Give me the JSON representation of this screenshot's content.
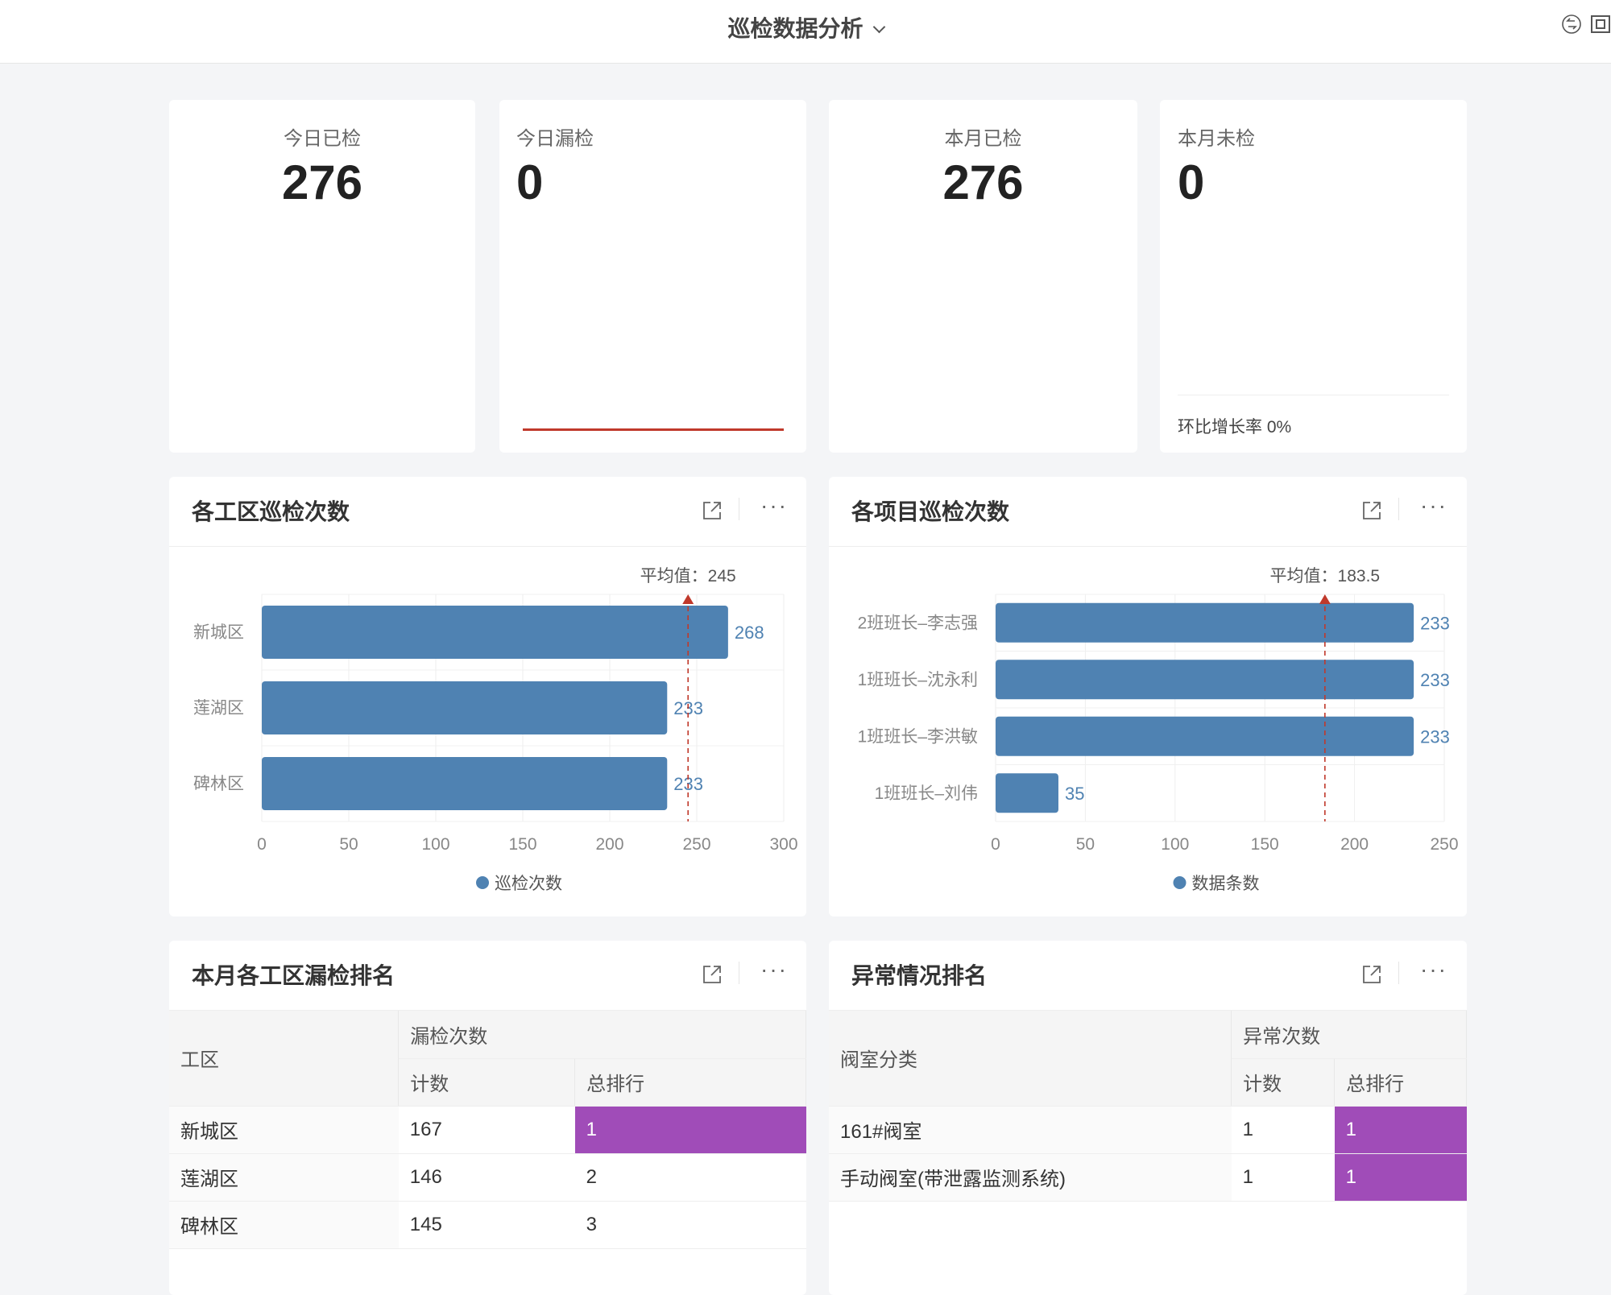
{
  "header": {
    "title": "巡检数据分析",
    "icons": [
      "sync-icon",
      "fullscreen-icon"
    ]
  },
  "kpis": [
    {
      "label": "今日已检",
      "value": "276"
    },
    {
      "label": "今日漏检",
      "value": "0"
    },
    {
      "label": "本月已检",
      "value": "276"
    },
    {
      "label": "本月未检",
      "value": "0",
      "footer": "环比增长率 0%"
    }
  ],
  "colors": {
    "bar": "#4f82b2",
    "avg": "#c0392b",
    "rank": "#a04cb8",
    "sparkline": "#c0392b"
  },
  "chart_data": [
    {
      "type": "bar",
      "orientation": "horizontal",
      "title": "各工区巡检次数",
      "categories": [
        "新城区",
        "莲湖区",
        "碑林区"
      ],
      "series": [
        {
          "name": "巡检次数",
          "values": [
            268,
            233,
            233
          ]
        }
      ],
      "xlim": [
        0,
        300
      ],
      "xticks": [
        0,
        50,
        100,
        150,
        200,
        250,
        300
      ],
      "average": {
        "label": "平均值：245",
        "value": 245
      },
      "legend": "bottom",
      "grid": true
    },
    {
      "type": "bar",
      "orientation": "horizontal",
      "title": "各项目巡检次数",
      "categories": [
        "2班班长–李志强",
        "1班班长–沈永利",
        "1班班长–李洪敏",
        "1班班长–刘伟"
      ],
      "series": [
        {
          "name": "数据条数",
          "values": [
            233,
            233,
            233,
            35
          ]
        }
      ],
      "xlim": [
        0,
        250
      ],
      "xticks": [
        0,
        50,
        100,
        150,
        200,
        250
      ],
      "average": {
        "label": "平均值：183.5",
        "value": 183.5
      },
      "legend": "bottom",
      "grid": true
    }
  ],
  "tables": [
    {
      "title": "本月各工区漏检排名",
      "col1": "工区",
      "group": "漏检次数",
      "sub": [
        "计数",
        "总排行"
      ],
      "rows": [
        [
          "新城区",
          "167",
          "1"
        ],
        [
          "莲湖区",
          "146",
          "2"
        ],
        [
          "碑林区",
          "145",
          "3"
        ]
      ]
    },
    {
      "title": "异常情况排名",
      "col1": "阀室分类",
      "group": "异常次数",
      "sub": [
        "计数",
        "总排行"
      ],
      "rows": [
        [
          "161#阀室",
          "1",
          "1"
        ],
        [
          "手动阀室(带泄露监测系统)",
          "1",
          "1"
        ]
      ]
    }
  ]
}
